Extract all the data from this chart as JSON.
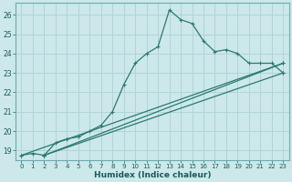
{
  "xlabel": "Humidex (Indice chaleur)",
  "bg_color": "#cce8ea",
  "grid_color": "#b0d4d8",
  "line_color": "#2a7a70",
  "xlim": [
    -0.5,
    23.5
  ],
  "ylim": [
    18.5,
    26.6
  ],
  "xticks": [
    0,
    1,
    2,
    3,
    4,
    5,
    6,
    7,
    8,
    9,
    10,
    11,
    12,
    13,
    14,
    15,
    16,
    17,
    18,
    19,
    20,
    21,
    22,
    23
  ],
  "yticks": [
    19,
    20,
    21,
    22,
    23,
    24,
    25,
    26
  ],
  "series": [
    [
      0,
      18.75
    ],
    [
      1,
      18.85
    ],
    [
      2,
      18.75
    ],
    [
      3,
      19.4
    ],
    [
      4,
      19.6
    ],
    [
      5,
      19.7
    ],
    [
      6,
      20.0
    ],
    [
      7,
      20.3
    ],
    [
      8,
      21.0
    ],
    [
      9,
      22.4
    ],
    [
      10,
      23.5
    ],
    [
      11,
      24.0
    ],
    [
      12,
      24.35
    ],
    [
      13,
      26.25
    ],
    [
      14,
      25.75
    ],
    [
      15,
      25.55
    ],
    [
      16,
      24.65
    ],
    [
      17,
      24.1
    ],
    [
      18,
      24.2
    ],
    [
      19,
      24.0
    ],
    [
      20,
      23.5
    ],
    [
      21,
      23.5
    ],
    [
      22,
      23.5
    ],
    [
      23,
      23.0
    ]
  ],
  "line2": [
    [
      0,
      18.75
    ],
    [
      23,
      23.5
    ]
  ],
  "line3": [
    [
      2,
      18.75
    ],
    [
      23,
      23.5
    ]
  ],
  "line4": [
    [
      2,
      18.75
    ],
    [
      23,
      23.0
    ]
  ]
}
